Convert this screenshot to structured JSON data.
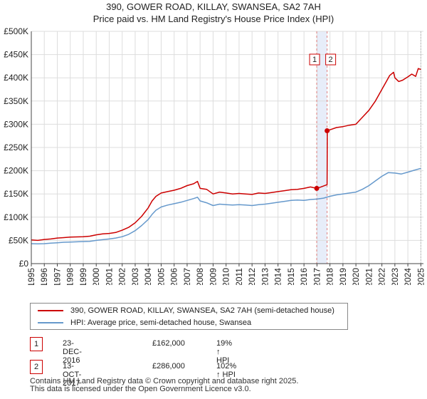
{
  "title_line1": "390, GOWER ROAD, KILLAY, SWANSEA, SA2 7AH",
  "title_line2": "Price paid vs. HM Land Registry's House Price Index (HPI)",
  "chart_data": {
    "type": "line",
    "ylim": [
      0,
      500000
    ],
    "xlim": [
      1995,
      2025.2
    ],
    "yticks": [
      {
        "value": 0,
        "label": "£0"
      },
      {
        "value": 50000,
        "label": "£50K"
      },
      {
        "value": 100000,
        "label": "£100K"
      },
      {
        "value": 150000,
        "label": "£150K"
      },
      {
        "value": 200000,
        "label": "£200K"
      },
      {
        "value": 250000,
        "label": "£250K"
      },
      {
        "value": 300000,
        "label": "£300K"
      },
      {
        "value": 350000,
        "label": "£350K"
      },
      {
        "value": 400000,
        "label": "£400K"
      },
      {
        "value": 450000,
        "label": "£450K"
      },
      {
        "value": 500000,
        "label": "£500K"
      }
    ],
    "xticks": [
      "1995",
      "1996",
      "1997",
      "1998",
      "1999",
      "2000",
      "2001",
      "2002",
      "2003",
      "2004",
      "2005",
      "2006",
      "2007",
      "2008",
      "2009",
      "2010",
      "2011",
      "2012",
      "2013",
      "2014",
      "2015",
      "2016",
      "2017",
      "2018",
      "2019",
      "2020",
      "2021",
      "2022",
      "2023",
      "2024",
      "2025"
    ],
    "grid": true,
    "colors": {
      "property": "#cc0000",
      "hpi": "#6699cc",
      "shade": "#dde6f7",
      "marker_line": "#e08080"
    },
    "series": [
      {
        "name": "390, GOWER ROAD, KILLAY, SWANSEA, SA2 7AH (semi-detached house)",
        "x": [
          1995,
          1995.5,
          1996,
          1996.5,
          1997,
          1997.5,
          1998,
          1998.5,
          1999,
          1999.5,
          2000,
          2000.5,
          2001,
          2001.5,
          2002,
          2002.5,
          2003,
          2003.5,
          2004,
          2004.3,
          2004.6,
          2005,
          2005.5,
          2006,
          2006.5,
          2007,
          2007.5,
          2007.8,
          2008,
          2008.5,
          2009,
          2009.5,
          2010,
          2010.5,
          2011,
          2011.5,
          2012,
          2012.5,
          2013,
          2013.5,
          2014,
          2014.5,
          2015,
          2015.5,
          2016,
          2016.5,
          2016.98,
          2017.3,
          2017.78,
          2017.8,
          2018,
          2018.5,
          2019,
          2019.5,
          2020,
          2020.5,
          2021,
          2021.5,
          2022,
          2022.3,
          2022.6,
          2022.9,
          2023,
          2023.3,
          2023.6,
          2024,
          2024.3,
          2024.6,
          2024.8,
          2025
        ],
        "y": [
          51000,
          50000,
          52000,
          53000,
          55000,
          56000,
          57000,
          57500,
          58000,
          59000,
          62000,
          64000,
          65000,
          67000,
          72000,
          78000,
          88000,
          102000,
          120000,
          135000,
          145000,
          152000,
          155000,
          158000,
          162000,
          168000,
          172000,
          177000,
          162000,
          160000,
          150000,
          154000,
          152000,
          150000,
          151000,
          150000,
          149000,
          152000,
          151000,
          153000,
          155000,
          157000,
          159000,
          160000,
          162000,
          165000,
          162000,
          165000,
          170000,
          286000,
          288000,
          293000,
          295000,
          298000,
          300000,
          315000,
          330000,
          350000,
          375000,
          390000,
          405000,
          412000,
          400000,
          392000,
          395000,
          402000,
          408000,
          403000,
          420000,
          418000
        ]
      },
      {
        "name": "HPI: Average price, semi-detached house, Swansea",
        "x": [
          1995,
          1995.5,
          1996,
          1996.5,
          1997,
          1997.5,
          1998,
          1998.5,
          1999,
          1999.5,
          2000,
          2000.5,
          2001,
          2001.5,
          2002,
          2002.5,
          2003,
          2003.5,
          2004,
          2004.3,
          2004.6,
          2005,
          2005.5,
          2006,
          2006.5,
          2007,
          2007.5,
          2007.8,
          2008,
          2008.5,
          2009,
          2009.5,
          2010,
          2010.5,
          2011,
          2011.5,
          2012,
          2012.5,
          2013,
          2013.5,
          2014,
          2014.5,
          2015,
          2015.5,
          2016,
          2016.5,
          2017,
          2017.5,
          2018,
          2018.5,
          2019,
          2019.5,
          2020,
          2020.5,
          2021,
          2021.5,
          2022,
          2022.5,
          2023,
          2023.5,
          2024,
          2024.5,
          2025
        ],
        "y": [
          43000,
          42500,
          43000,
          44000,
          45000,
          46000,
          46500,
          47000,
          47500,
          48000,
          50000,
          51500,
          53000,
          55000,
          58000,
          63000,
          71000,
          82000,
          95000,
          106000,
          115000,
          122000,
          126000,
          129000,
          132000,
          136000,
          140000,
          143000,
          135000,
          131000,
          125000,
          128000,
          127000,
          126000,
          127000,
          126000,
          125000,
          127000,
          128000,
          130000,
          132000,
          134000,
          136000,
          137000,
          136000,
          138000,
          139000,
          141000,
          145000,
          148000,
          150000,
          152000,
          154000,
          160000,
          168000,
          178000,
          188000,
          196000,
          195000,
          193000,
          197000,
          201000,
          205000
        ]
      }
    ],
    "transactions": [
      {
        "id": "1",
        "date": "23-DEC-2016",
        "price": "£162,000",
        "hpi": "19% ↑ HPI",
        "x": 2016.98,
        "y": 162000
      },
      {
        "id": "2",
        "date": "13-OCT-2017",
        "price": "£286,000",
        "hpi": "102% ↑ HPI",
        "x": 2017.78,
        "y": 286000
      }
    ]
  },
  "legend": {
    "property_label": "390, GOWER ROAD, KILLAY, SWANSEA, SA2 7AH (semi-detached house)",
    "hpi_label": "HPI: Average price, semi-detached house, Swansea"
  },
  "footer": {
    "line1": "Contains HM Land Registry data © Crown copyright and database right 2025.",
    "line2": "This data is licensed under the Open Government Licence v3.0."
  }
}
